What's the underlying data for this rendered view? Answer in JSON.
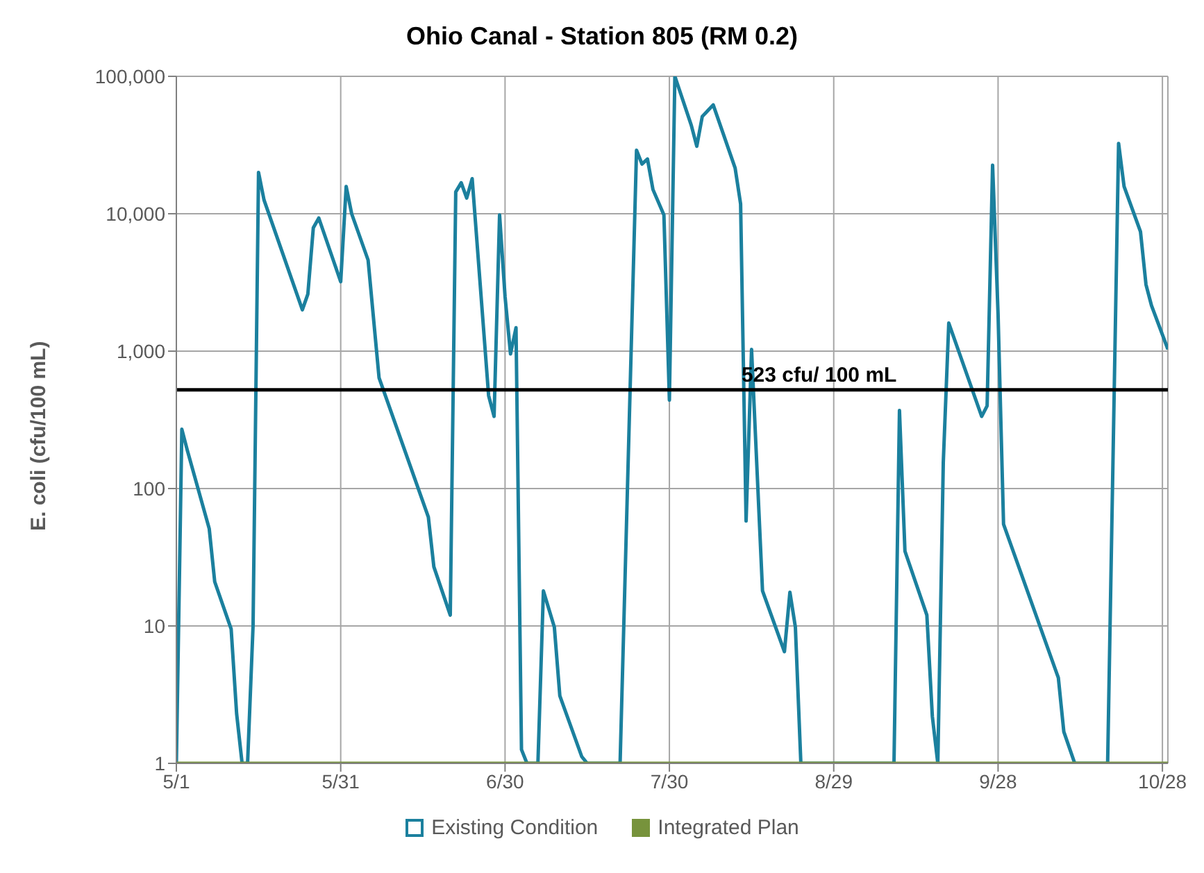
{
  "chart_data": {
    "type": "line",
    "title": "Ohio Canal - Station 805 (RM 0.2)",
    "ylabel": "E. coli (cfu/100 mL)",
    "log": true,
    "grid": true,
    "legend": "bottom",
    "marker": "none",
    "line_style": "solid",
    "xlim": [
      "--05-01",
      "--10-29"
    ],
    "xticks": [
      {
        "value": "--05-01",
        "label": "5/1"
      },
      {
        "value": "--05-31",
        "label": "5/31"
      },
      {
        "value": "--06-30",
        "label": "6/30"
      },
      {
        "value": "--07-30",
        "label": "7/30"
      },
      {
        "value": "--08-29",
        "label": "8/29"
      },
      {
        "value": "--09-28",
        "label": "9/28"
      },
      {
        "value": "--10-28",
        "label": "10/28"
      }
    ],
    "ylim": [
      1,
      100000
    ],
    "yticks": [
      1,
      10,
      100,
      {
        "value": 1000,
        "label": "1,000"
      },
      {
        "value": 10000,
        "label": "10,000"
      },
      {
        "value": 100000,
        "label": "100,000"
      }
    ],
    "ref_lines": [
      {
        "axis": "y",
        "value": 523,
        "label": "523 cfu/ 100 mL",
        "color": "#000000"
      }
    ],
    "series": [
      {
        "name": "Existing Condition",
        "color": "#1b809e",
        "x": [
          "--05-01",
          "--05-02",
          "--05-03",
          "--05-07",
          "--05-08",
          "--05-11",
          "--05-12",
          "--05-13",
          "--05-14",
          "--05-15",
          "--05-16",
          "--05-17",
          "--05-24",
          "--05-25",
          "--05-26",
          "--05-27",
          "--05-31",
          "--06-01",
          "--06-02",
          "--06-05",
          "--06-07",
          "--06-16",
          "--06-17",
          "--06-20",
          "--06-21",
          "--06-22",
          "--06-23",
          "--06-24",
          "--06-27",
          "--06-28",
          "--06-29",
          "--06-30",
          "--07-01",
          "--07-02",
          "--07-03",
          "--07-04",
          "--07-06",
          "--07-07",
          "--07-09",
          "--07-10",
          "--07-14",
          "--07-15",
          "--07-21",
          "--07-24",
          "--07-25",
          "--07-26",
          "--07-27",
          "--07-29",
          "--07-30",
          "--07-31",
          "--08-03",
          "--08-04",
          "--08-05",
          "--08-07",
          "--08-11",
          "--08-12",
          "--08-13",
          "--08-14",
          "--08-16",
          "--08-20",
          "--08-21",
          "--08-22",
          "--08-23",
          "--09-09",
          "--09-10",
          "--09-11",
          "--09-15",
          "--09-16",
          "--09-17",
          "--09-18",
          "--09-19",
          "--09-25",
          "--09-26",
          "--09-27",
          "--09-28",
          "--09-29",
          "--10-09",
          "--10-10",
          "--10-12",
          "--10-18",
          "--10-20",
          "--10-21",
          "--10-24",
          "--10-25",
          "--10-26",
          "--10-29"
        ],
        "values": [
          1,
          270,
          190,
          51,
          21,
          9.5,
          2.3,
          1,
          1,
          10,
          20000,
          12600,
          2000,
          2600,
          7900,
          9300,
          3200,
          15800,
          10000,
          4600,
          640,
          62,
          27,
          12,
          14400,
          16800,
          13000,
          18000,
          475,
          335,
          9800,
          2500,
          955,
          1480,
          1.26,
          1,
          1,
          18,
          9.8,
          3.1,
          1.12,
          1,
          1,
          29000,
          23000,
          25000,
          15000,
          9800,
          440,
          100000,
          44000,
          31000,
          51000,
          62000,
          21500,
          11800,
          58,
          1030,
          18,
          6.5,
          17.6,
          9.8,
          1,
          1,
          370,
          35,
          12,
          2.2,
          1,
          155,
          1600,
          335,
          400,
          22600,
          1850,
          55,
          4.2,
          1.7,
          1,
          1,
          32500,
          15800,
          7400,
          3050,
          2150,
          1030
        ]
      },
      {
        "name": "Integrated Plan",
        "color": "#77933c",
        "x": [
          "--05-01",
          "--10-29"
        ],
        "values": [
          1,
          1
        ]
      }
    ]
  }
}
